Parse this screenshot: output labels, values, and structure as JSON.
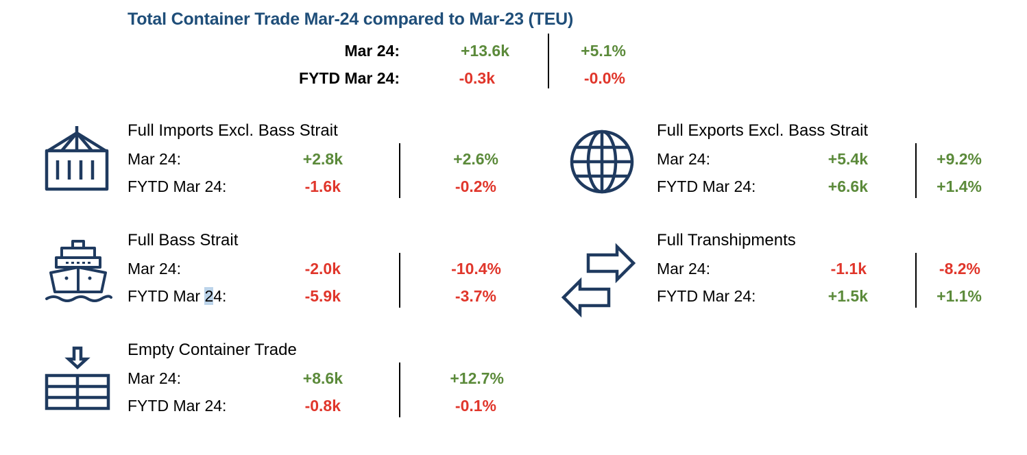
{
  "title": "Total Container Trade Mar-24 compared to Mar-23 (TEU)",
  "colors": {
    "title": "#1f4e79",
    "positive": "#5b8a3a",
    "negative": "#e0362b",
    "icon": "#1f3a5f"
  },
  "total": {
    "row1": {
      "label": "Mar  24:",
      "abs": "+13.6k",
      "pct": "+5.1%"
    },
    "row2": {
      "label": "FYTD Mar 24:",
      "abs": "-0.3k",
      "pct": "-0.0%"
    }
  },
  "sections": {
    "imports": {
      "title": "Full Imports Excl. Bass Strait",
      "icon": "container-icon",
      "row1": {
        "label": "Mar  24:",
        "abs": "+2.8k",
        "pct": "+2.6%"
      },
      "row2": {
        "label": "FYTD Mar  24:",
        "abs": "-1.6k",
        "pct": "-0.2%"
      }
    },
    "exports": {
      "title": "Full Exports Excl. Bass Strait",
      "icon": "globe-icon",
      "row1": {
        "label": "Mar  24:",
        "abs": "+5.4k",
        "pct": "+9.2%"
      },
      "row2": {
        "label": "FYTD Mar  24:",
        "abs": "+6.6k",
        "pct": "+1.4%"
      }
    },
    "bass": {
      "title": "Full Bass Strait",
      "icon": "ship-icon",
      "row1": {
        "label": "Mar  24:",
        "abs": "-2.0k",
        "pct": "-10.4%"
      },
      "row2": {
        "label_a": "FYTD Mar  ",
        "label_b": "2",
        "label_c": "4:",
        "abs": "-5.9k",
        "pct": "-3.7%"
      }
    },
    "tranship": {
      "title": "Full Transhipments",
      "icon": "transfer-arrows-icon",
      "row1": {
        "label": "Mar  24:",
        "abs": "-1.1k",
        "pct": "-8.2%"
      },
      "row2": {
        "label": "FYTD Mar  24:",
        "abs": "+1.5k",
        "pct": "+1.1%"
      }
    },
    "empty": {
      "title": "Empty Container Trade",
      "icon": "empty-container-icon",
      "row1": {
        "label": "Mar  24:",
        "abs": "+8.6k",
        "pct": "+12.7%"
      },
      "row2": {
        "label": "FYTD Mar  24:",
        "abs": "-0.8k",
        "pct": "-0.1%"
      }
    }
  }
}
